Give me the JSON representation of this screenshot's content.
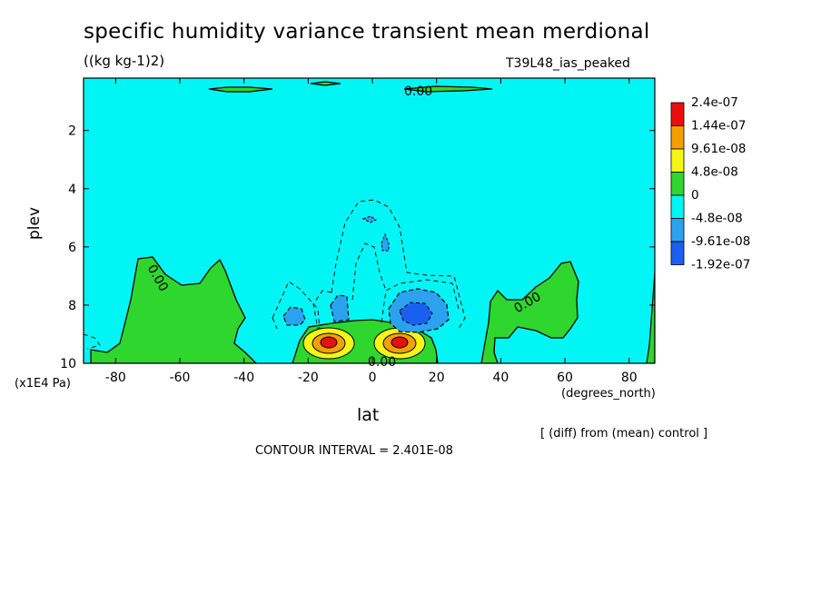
{
  "chart_data": {
    "type": "heatmap",
    "title": "specific humidity variance transient mean merdional",
    "units": "((kg kg-1)2)",
    "run_label": "T39L48_ias_peaked",
    "xlabel": "lat",
    "xunits": "(degrees_north)",
    "ylabel": "plev",
    "yunits": "(x1E4 Pa)",
    "xlim": [
      -90,
      88
    ],
    "ylim": [
      10,
      0.2
    ],
    "y_inverted": true,
    "x_ticks": [
      -80,
      -60,
      -40,
      -20,
      0,
      20,
      40,
      60,
      80
    ],
    "y_ticks": [
      2,
      4,
      6,
      8,
      10
    ],
    "contour_labels": [
      "0.00",
      "0.00",
      "0.00",
      "0.00"
    ],
    "contour_interval_text": "CONTOUR INTERVAL = 2.401E-08",
    "footnote": "[ (diff) from (mean) control ]",
    "colorbar": {
      "labels": [
        "2.4e-07",
        "1.44e-07",
        "9.61e-08",
        "4.8e-08",
        "0",
        "-4.8e-08",
        "-9.61e-08",
        "-1.92e-07"
      ],
      "colors": [
        "#e8100c",
        "#f5a000",
        "#f5f516",
        "#2ed62e",
        "#00f5f5",
        "#2aa2f0",
        "#1a60f0"
      ]
    },
    "regions": [
      {
        "level": "0 to 4.8e-08",
        "color": "#2ed62e",
        "lat_range": [
          -88,
          -40
        ],
        "plev_range": [
          6.3,
          10
        ]
      },
      {
        "level": "0 to 4.8e-08",
        "color": "#2ed62e",
        "lat_range": [
          -22,
          22
        ],
        "plev_range": [
          8.6,
          10
        ]
      },
      {
        "level": "0 to 4.8e-08",
        "color": "#2ed62e",
        "lat_range": [
          38,
          64
        ],
        "plev_range": [
          7.0,
          10
        ]
      },
      {
        "level": "max > 2.4e-07",
        "color": "#e8100c",
        "lat": -10,
        "plev": 9.3
      },
      {
        "level": "max > 2.4e-07",
        "color": "#e8100c",
        "lat": 9,
        "plev": 9.3
      },
      {
        "level": "min < -9.61e-08",
        "color": "#1a60f0",
        "lat": 12,
        "plev": 8.3
      }
    ]
  }
}
